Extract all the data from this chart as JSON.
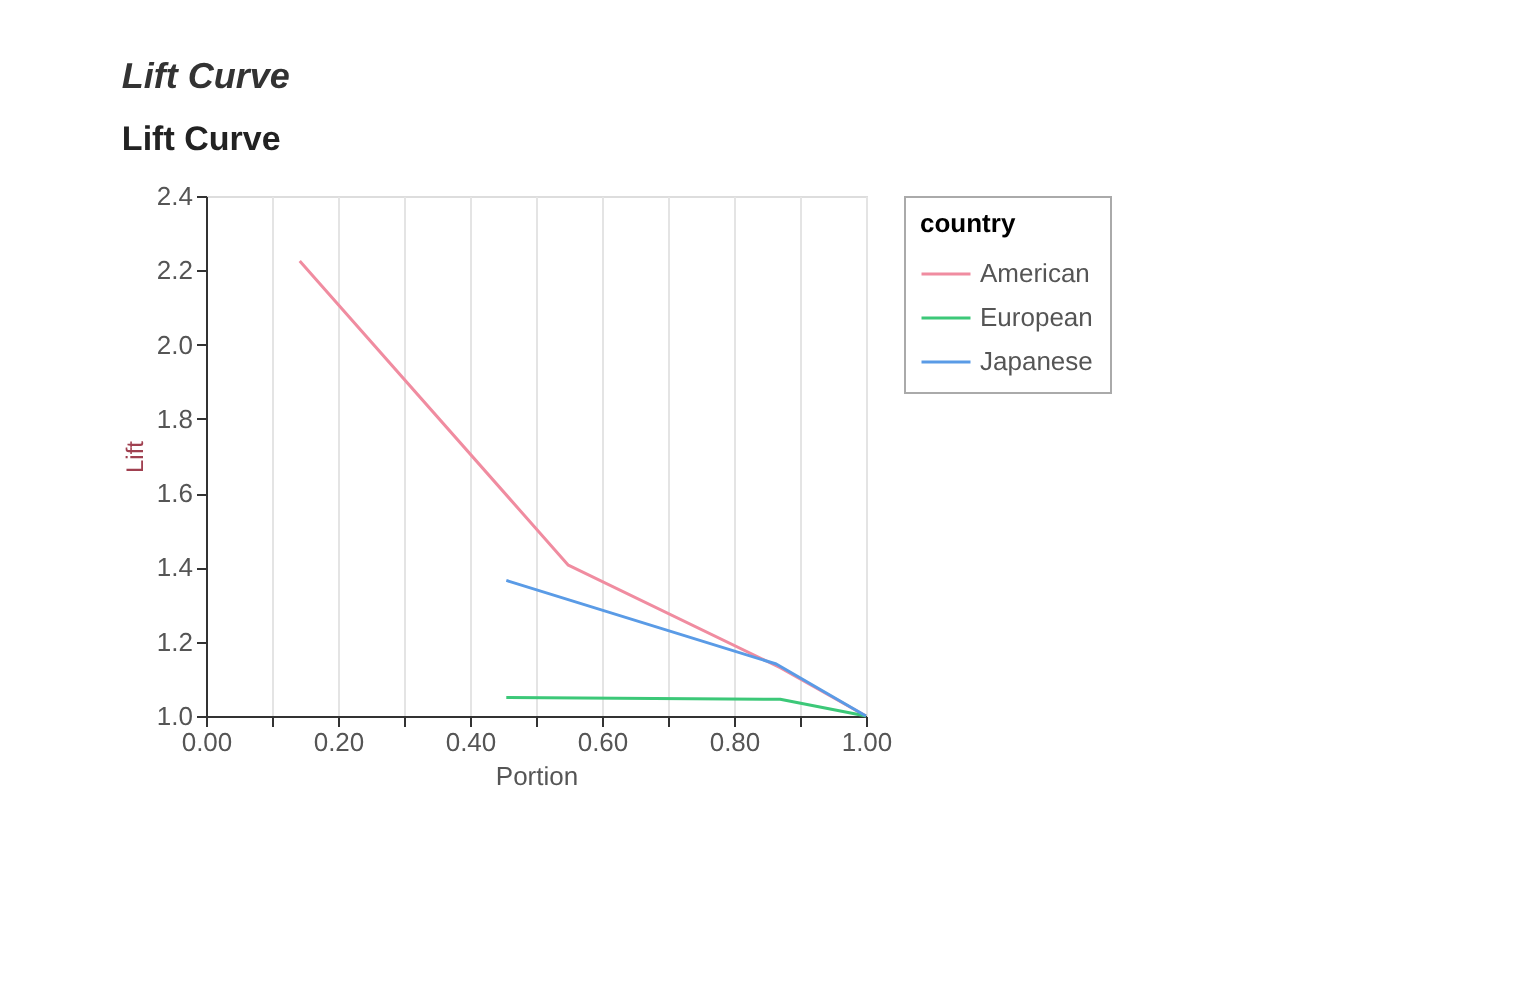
{
  "chart_data": {
    "type": "line",
    "title": "Lift Curve",
    "subtitle": "Lift Curve",
    "xlabel": "Portion",
    "ylabel": "Lift",
    "legend_title": "country",
    "series": [
      {
        "name": "American",
        "color": "#f08ca0",
        "x": [
          0.142,
          0.549,
          0.87,
          1.0
        ],
        "values": [
          2.225,
          1.406,
          1.13,
          1.0
        ]
      },
      {
        "name": "European",
        "color": "#3cc878",
        "x": [
          0.455,
          0.87,
          1.0
        ],
        "values": [
          1.05,
          1.045,
          1.0
        ]
      },
      {
        "name": "Japanese",
        "color": "#5a9be6",
        "x": [
          0.455,
          0.864,
          1.0
        ],
        "values": [
          1.365,
          1.14,
          1.0
        ]
      }
    ],
    "xlim": [
      0,
      1
    ],
    "ylim": [
      1,
      2.4
    ],
    "xticks": [
      {
        "value": 0,
        "label": "0.00"
      },
      {
        "value": 0.1,
        "label": null
      },
      {
        "value": 0.2,
        "label": "0.20"
      },
      {
        "value": 0.3,
        "label": null
      },
      {
        "value": 0.4,
        "label": "0.40"
      },
      {
        "value": 0.5,
        "label": null
      },
      {
        "value": 0.6,
        "label": "0.60"
      },
      {
        "value": 0.7,
        "label": null
      },
      {
        "value": 0.8,
        "label": "0.80"
      },
      {
        "value": 0.9,
        "label": null
      },
      {
        "value": 1,
        "label": "1.00"
      }
    ],
    "yticks": [
      {
        "value": 1,
        "label": "1.0"
      },
      {
        "value": 1.2,
        "label": "1.2"
      },
      {
        "value": 1.4,
        "label": "1.4"
      },
      {
        "value": 1.6,
        "label": "1.6"
      },
      {
        "value": 1.8,
        "label": "1.8"
      },
      {
        "value": 2,
        "label": "2.0"
      },
      {
        "value": 2.2,
        "label": "2.2"
      },
      {
        "value": 2.4,
        "label": "2.4"
      }
    ],
    "grid": "x",
    "legend": "top right",
    "marker": "none",
    "line_style": "solid"
  }
}
